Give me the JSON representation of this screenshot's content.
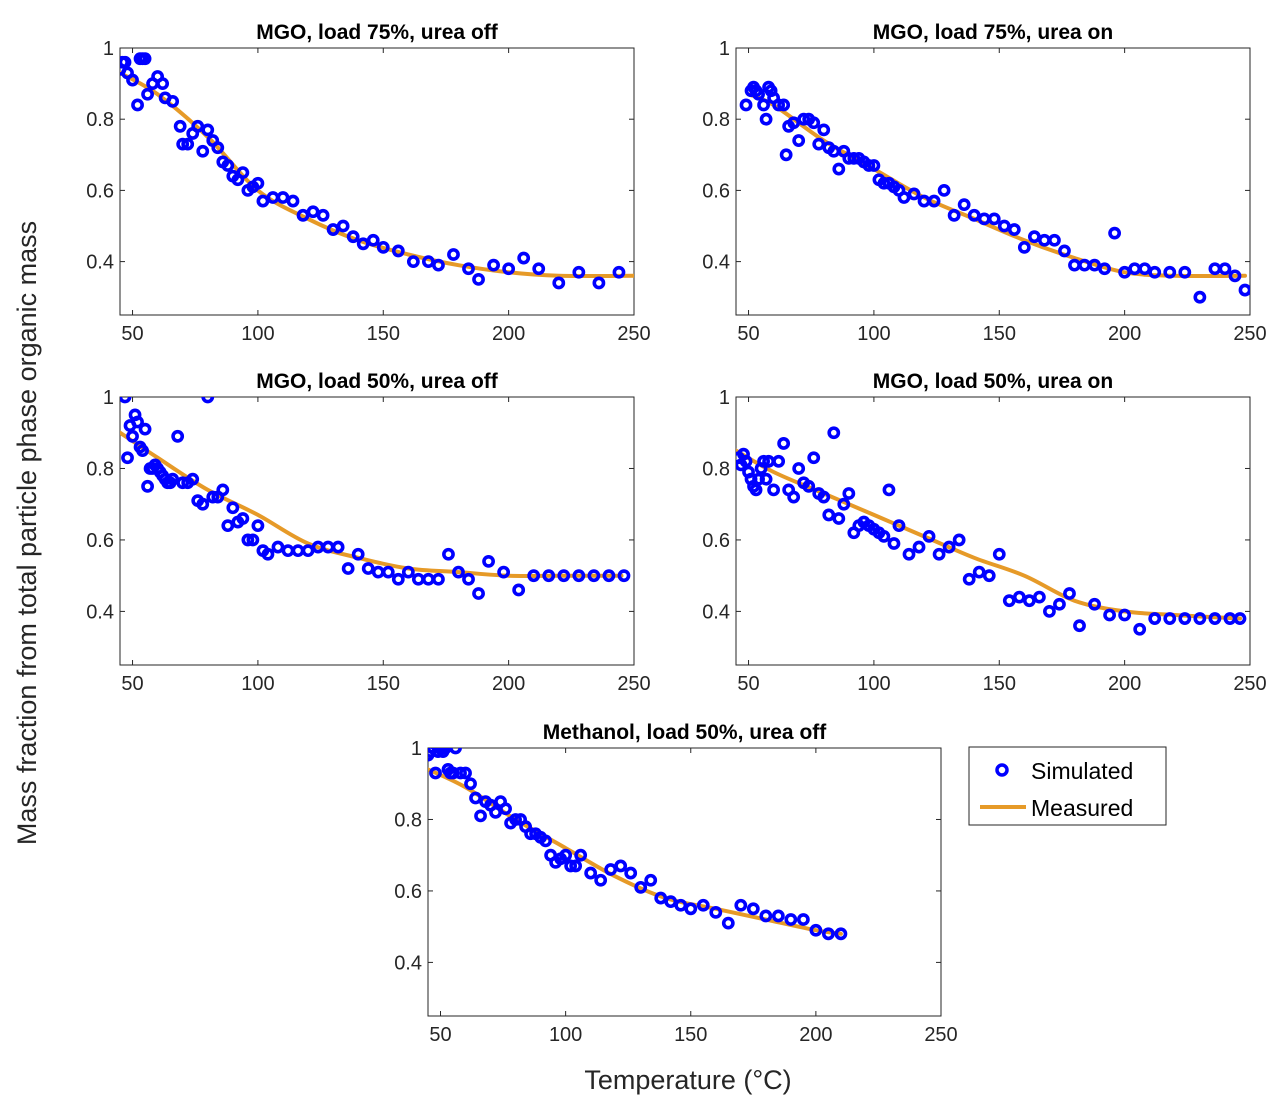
{
  "figure": {
    "ylabel": "Mass fraction from total particle phase organic mass",
    "xlabel": "Temperature (°C)",
    "legend": {
      "simulated": "Simulated",
      "measured": "Measured"
    }
  },
  "colors": {
    "simulated": "#0000ff",
    "measured": "#e69a28",
    "axis": "#262626"
  },
  "chart_data": [
    {
      "type": "scatter",
      "title": "MGO, load 75%, urea off",
      "xlim": [
        45,
        250
      ],
      "ylim": [
        0.25,
        1
      ],
      "xticks": [
        50,
        100,
        150,
        200,
        250
      ],
      "yticks": [
        0.4,
        0.6,
        0.8,
        1
      ],
      "ytick_labels": [
        "0.4",
        "0.6",
        "0.8",
        "1"
      ],
      "series": [
        {
          "name": "Simulated",
          "x": [
            45,
            46,
            47,
            48,
            50,
            52,
            53,
            54,
            55,
            56,
            58,
            60,
            62,
            63,
            66,
            69,
            70,
            72,
            74,
            76,
            78,
            80,
            82,
            84,
            86,
            88,
            90,
            92,
            94,
            96,
            98,
            100,
            102,
            106,
            110,
            114,
            118,
            122,
            126,
            130,
            134,
            138,
            142,
            146,
            150,
            156,
            162,
            168,
            172,
            178,
            184,
            188,
            194,
            200,
            206,
            212,
            220,
            228,
            236,
            244
          ],
          "y": [
            0.94,
            0.96,
            0.96,
            0.93,
            0.91,
            0.84,
            0.97,
            0.97,
            0.97,
            0.87,
            0.9,
            0.92,
            0.9,
            0.86,
            0.85,
            0.78,
            0.73,
            0.73,
            0.76,
            0.78,
            0.71,
            0.77,
            0.74,
            0.72,
            0.68,
            0.67,
            0.64,
            0.63,
            0.65,
            0.6,
            0.61,
            0.62,
            0.57,
            0.58,
            0.58,
            0.57,
            0.53,
            0.54,
            0.53,
            0.49,
            0.5,
            0.47,
            0.45,
            0.46,
            0.44,
            0.43,
            0.4,
            0.4,
            0.39,
            0.42,
            0.38,
            0.35,
            0.39,
            0.38,
            0.41,
            0.38,
            0.34,
            0.37,
            0.34,
            0.37
          ]
        },
        {
          "name": "Measured",
          "x": [
            45,
            60,
            80,
            100,
            120,
            140,
            160,
            180,
            200,
            220,
            250
          ],
          "y": [
            0.93,
            0.87,
            0.75,
            0.6,
            0.52,
            0.46,
            0.42,
            0.39,
            0.37,
            0.36,
            0.36
          ]
        }
      ]
    },
    {
      "type": "scatter",
      "title": "MGO, load 75%, urea on",
      "xlim": [
        45,
        250
      ],
      "ylim": [
        0.25,
        1
      ],
      "xticks": [
        50,
        100,
        150,
        200,
        250
      ],
      "yticks": [
        0.4,
        0.6,
        0.8,
        1
      ],
      "ytick_labels": [
        "0.4",
        "0.6",
        "0.8",
        "1"
      ],
      "series": [
        {
          "name": "Simulated",
          "x": [
            49,
            51,
            52,
            53,
            54,
            56,
            57,
            58,
            59,
            60,
            62,
            64,
            65,
            66,
            68,
            70,
            72,
            74,
            76,
            78,
            80,
            82,
            84,
            86,
            88,
            90,
            92,
            94,
            96,
            98,
            100,
            102,
            104,
            106,
            108,
            110,
            112,
            116,
            120,
            124,
            128,
            132,
            136,
            140,
            144,
            148,
            152,
            156,
            160,
            164,
            168,
            172,
            176,
            180,
            184,
            188,
            192,
            196,
            200,
            204,
            208,
            212,
            218,
            224,
            230,
            236,
            240,
            244,
            248
          ],
          "y": [
            0.84,
            0.88,
            0.89,
            0.88,
            0.87,
            0.84,
            0.8,
            0.89,
            0.88,
            0.86,
            0.84,
            0.84,
            0.7,
            0.78,
            0.79,
            0.74,
            0.8,
            0.8,
            0.79,
            0.73,
            0.77,
            0.72,
            0.71,
            0.66,
            0.71,
            0.69,
            0.69,
            0.69,
            0.68,
            0.67,
            0.67,
            0.63,
            0.62,
            0.62,
            0.61,
            0.6,
            0.58,
            0.59,
            0.57,
            0.57,
            0.6,
            0.53,
            0.56,
            0.53,
            0.52,
            0.52,
            0.5,
            0.49,
            0.44,
            0.47,
            0.46,
            0.46,
            0.43,
            0.39,
            0.39,
            0.39,
            0.38,
            0.48,
            0.37,
            0.38,
            0.38,
            0.37,
            0.37,
            0.37,
            0.3,
            0.38,
            0.38,
            0.36,
            0.32
          ],
          "x_note": ""
        },
        {
          "name": "Measured",
          "x": [
            50,
            60,
            80,
            100,
            120,
            140,
            160,
            180,
            200,
            220,
            248
          ],
          "y": [
            0.87,
            0.84,
            0.74,
            0.66,
            0.58,
            0.52,
            0.46,
            0.41,
            0.37,
            0.36,
            0.36
          ]
        }
      ]
    },
    {
      "type": "scatter",
      "title": "MGO, load 50%, urea off",
      "xlim": [
        45,
        250
      ],
      "ylim": [
        0.25,
        1
      ],
      "xticks": [
        50,
        100,
        150,
        200,
        250
      ],
      "yticks": [
        0.4,
        0.6,
        0.8,
        1
      ],
      "ytick_labels": [
        "0.4",
        "0.6",
        "0.8",
        "1"
      ],
      "series": [
        {
          "name": "Simulated",
          "x": [
            47,
            48,
            49,
            50,
            51,
            52,
            53,
            54,
            55,
            56,
            57,
            58,
            59,
            60,
            61,
            62,
            63,
            64,
            65,
            66,
            68,
            70,
            72,
            74,
            76,
            78,
            80,
            82,
            84,
            86,
            88,
            90,
            92,
            94,
            96,
            98,
            100,
            102,
            104,
            108,
            112,
            116,
            120,
            124,
            128,
            132,
            136,
            140,
            144,
            148,
            152,
            156,
            160,
            164,
            168,
            172,
            176,
            180,
            184,
            188,
            192,
            198,
            204,
            210,
            216,
            222,
            228,
            234,
            240,
            246
          ],
          "y": [
            1.0,
            0.83,
            0.92,
            0.89,
            0.95,
            0.93,
            0.86,
            0.85,
            0.91,
            0.75,
            0.8,
            0.8,
            0.81,
            0.8,
            0.79,
            0.78,
            0.77,
            0.76,
            0.76,
            0.77,
            0.89,
            0.76,
            0.76,
            0.77,
            0.71,
            0.7,
            1.0,
            0.72,
            0.72,
            0.74,
            0.64,
            0.69,
            0.65,
            0.66,
            0.6,
            0.6,
            0.64,
            0.57,
            0.56,
            0.58,
            0.57,
            0.57,
            0.57,
            0.58,
            0.58,
            0.58,
            0.52,
            0.56,
            0.52,
            0.51,
            0.51,
            0.49,
            0.51,
            0.49,
            0.49,
            0.49,
            0.56,
            0.51,
            0.49,
            0.45,
            0.54,
            0.51,
            0.46,
            0.5,
            0.5,
            0.5,
            0.5,
            0.5,
            0.5,
            0.5
          ]
        },
        {
          "name": "Measured",
          "x": [
            45,
            60,
            80,
            100,
            120,
            140,
            160,
            180,
            200,
            220,
            245
          ],
          "y": [
            0.9,
            0.83,
            0.74,
            0.67,
            0.59,
            0.55,
            0.52,
            0.51,
            0.5,
            0.5,
            0.5
          ]
        }
      ]
    },
    {
      "type": "scatter",
      "title": "MGO, load 50%, urea on",
      "xlim": [
        45,
        250
      ],
      "ylim": [
        0.25,
        1
      ],
      "xticks": [
        50,
        100,
        150,
        200,
        250
      ],
      "yticks": [
        0.4,
        0.6,
        0.8,
        1
      ],
      "ytick_labels": [
        "0.4",
        "0.6",
        "0.8",
        "1"
      ],
      "series": [
        {
          "name": "Simulated",
          "x": [
            46,
            47,
            48,
            49,
            50,
            51,
            52,
            53,
            54,
            55,
            56,
            57,
            58,
            60,
            62,
            64,
            66,
            68,
            70,
            72,
            74,
            76,
            78,
            80,
            82,
            84,
            86,
            88,
            90,
            92,
            94,
            96,
            98,
            100,
            102,
            104,
            106,
            108,
            110,
            114,
            118,
            122,
            126,
            130,
            134,
            138,
            142,
            146,
            150,
            154,
            158,
            162,
            166,
            170,
            174,
            178,
            182,
            188,
            194,
            200,
            206,
            212,
            218,
            224,
            230,
            236,
            242,
            246
          ],
          "y": [
            0.83,
            0.81,
            0.84,
            0.82,
            0.79,
            0.77,
            0.75,
            0.74,
            0.77,
            0.8,
            0.82,
            0.77,
            0.82,
            0.74,
            0.82,
            0.87,
            0.74,
            0.72,
            0.8,
            0.76,
            0.75,
            0.83,
            0.73,
            0.72,
            0.67,
            0.9,
            0.66,
            0.7,
            0.73,
            0.62,
            0.64,
            0.65,
            0.64,
            0.63,
            0.62,
            0.61,
            0.74,
            0.59,
            0.64,
            0.56,
            0.58,
            0.61,
            0.56,
            0.58,
            0.6,
            0.49,
            0.51,
            0.5,
            0.56,
            0.43,
            0.44,
            0.43,
            0.44,
            0.4,
            0.42,
            0.45,
            0.36,
            0.42,
            0.39,
            0.39,
            0.35,
            0.38,
            0.38,
            0.38,
            0.38,
            0.38,
            0.38,
            0.38
          ]
        },
        {
          "name": "Measured",
          "x": [
            45,
            60,
            80,
            100,
            120,
            140,
            160,
            180,
            200,
            220,
            246
          ],
          "y": [
            0.85,
            0.79,
            0.73,
            0.67,
            0.61,
            0.55,
            0.5,
            0.43,
            0.4,
            0.39,
            0.38
          ]
        }
      ]
    },
    {
      "type": "scatter",
      "title": "Methanol, load 50%, urea off",
      "xlim": [
        45,
        250
      ],
      "ylim": [
        0.25,
        1
      ],
      "xticks": [
        50,
        100,
        150,
        200,
        250
      ],
      "yticks": [
        0.4,
        0.6,
        0.8,
        1
      ],
      "ytick_labels": [
        "0.4",
        "0.6",
        "0.8",
        "1"
      ],
      "series": [
        {
          "name": "Simulated",
          "x": [
            45,
            46,
            47,
            48,
            49,
            50,
            51,
            52,
            53,
            54,
            55,
            56,
            58,
            60,
            62,
            64,
            66,
            68,
            70,
            72,
            74,
            76,
            78,
            80,
            82,
            84,
            86,
            88,
            90,
            92,
            94,
            96,
            98,
            100,
            102,
            104,
            106,
            110,
            114,
            118,
            122,
            126,
            130,
            134,
            138,
            142,
            146,
            150,
            155,
            160,
            165,
            170,
            175,
            180,
            185,
            190,
            195,
            200,
            205,
            210
          ],
          "y": [
            0.98,
            0.99,
            1.0,
            0.93,
            0.99,
            1.0,
            0.99,
            1.0,
            0.94,
            0.93,
            0.93,
            1.0,
            0.93,
            0.93,
            0.9,
            0.86,
            0.81,
            0.85,
            0.84,
            0.82,
            0.85,
            0.83,
            0.79,
            0.8,
            0.8,
            0.78,
            0.76,
            0.76,
            0.75,
            0.74,
            0.7,
            0.68,
            0.69,
            0.7,
            0.67,
            0.67,
            0.7,
            0.65,
            0.63,
            0.66,
            0.67,
            0.65,
            0.61,
            0.63,
            0.58,
            0.57,
            0.56,
            0.55,
            0.56,
            0.54,
            0.51,
            0.56,
            0.55,
            0.53,
            0.53,
            0.52,
            0.52,
            0.49,
            0.48,
            0.48
          ]
        },
        {
          "name": "Measured",
          "x": [
            45,
            60,
            80,
            100,
            120,
            140,
            160,
            180,
            200,
            210
          ],
          "y": [
            0.94,
            0.89,
            0.8,
            0.72,
            0.64,
            0.58,
            0.55,
            0.52,
            0.49,
            0.48
          ]
        }
      ]
    }
  ]
}
